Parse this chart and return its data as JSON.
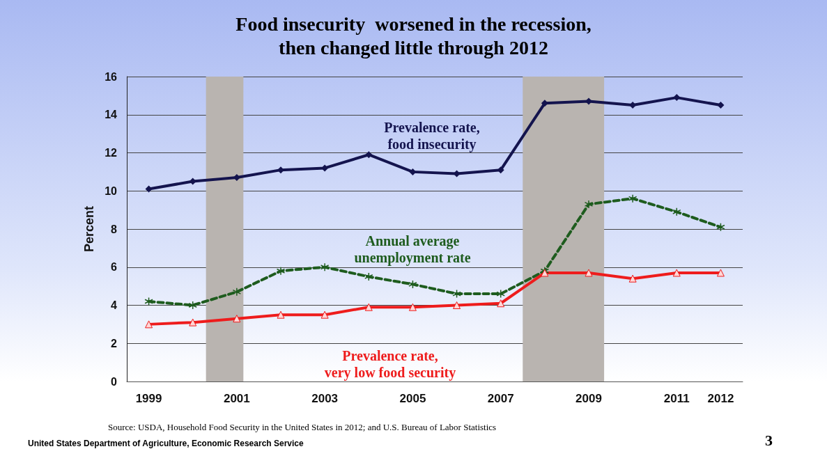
{
  "chart_data": {
    "type": "line",
    "title": "Food insecurity  worsened in the recession,\nthen changed little through 2012",
    "ylabel": "Percent",
    "x": [
      1999,
      2000,
      2001,
      2002,
      2003,
      2004,
      2005,
      2006,
      2007,
      2008,
      2009,
      2010,
      2011,
      2012
    ],
    "series": [
      {
        "name": "Prevalence rate,\nfood insecurity",
        "color": "#14144e",
        "marker": "diamond",
        "line_style": "solid",
        "values": [
          10.1,
          10.5,
          10.7,
          11.1,
          11.2,
          11.9,
          11.0,
          10.9,
          11.1,
          14.6,
          14.7,
          14.5,
          14.9,
          14.5
        ]
      },
      {
        "name": "Annual average\nunemployment rate",
        "color": "#1e5c1e",
        "marker": "cross",
        "line_style": "dashed",
        "values": [
          4.2,
          4.0,
          4.7,
          5.8,
          6.0,
          5.5,
          5.1,
          4.6,
          4.6,
          5.8,
          9.3,
          9.6,
          8.9,
          8.1
        ]
      },
      {
        "name": "Prevalence rate,\nvery low food security",
        "color": "#ee1c1c",
        "marker": "triangle",
        "line_style": "solid",
        "values": [
          3.0,
          3.1,
          3.3,
          3.5,
          3.5,
          3.9,
          3.9,
          4.0,
          4.1,
          5.7,
          5.7,
          5.4,
          5.7,
          5.7
        ]
      }
    ],
    "xlim": [
      1998.5,
      2012.5
    ],
    "xticks": [
      1999,
      2001,
      2003,
      2005,
      2007,
      2009,
      2011,
      2012
    ],
    "ylim": [
      0,
      16
    ],
    "yticks": [
      0,
      2,
      4,
      6,
      8,
      10,
      12,
      14,
      16
    ],
    "grid": "y",
    "legend": false,
    "bands": [
      {
        "axis": "x",
        "from": 2000.3,
        "to": 2001.15,
        "color": "#b9b4b0"
      },
      {
        "axis": "x",
        "from": 2007.5,
        "to": 2009.35,
        "color": "#b9b4b0"
      }
    ],
    "annotations": [
      "Source: USDA, Household Food Security in the United States in 2012; and U.S. Bureau of Labor Statistics",
      "United States Department of Agriculture, Economic Research Service",
      "3"
    ]
  }
}
